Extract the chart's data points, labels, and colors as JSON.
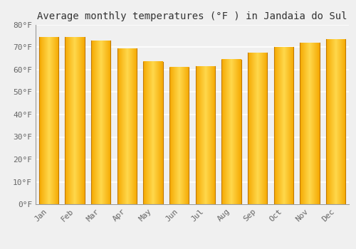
{
  "title": "Average monthly temperatures (°F ) in Jandaia do Sul",
  "months": [
    "Jan",
    "Feb",
    "Mar",
    "Apr",
    "May",
    "Jun",
    "Jul",
    "Aug",
    "Sep",
    "Oct",
    "Nov",
    "Dec"
  ],
  "values": [
    74.5,
    74.5,
    73.0,
    69.5,
    63.5,
    61.0,
    61.5,
    64.5,
    67.5,
    70.0,
    72.0,
    73.5
  ],
  "color_left": "#F5A800",
  "color_center": "#FFD84D",
  "color_right": "#F5A800",
  "ylim": [
    0,
    80
  ],
  "ytick_step": 10,
  "background_color": "#f0f0f0",
  "grid_color": "#ffffff",
  "title_fontsize": 10,
  "tick_fontsize": 8,
  "bar_width": 0.75
}
